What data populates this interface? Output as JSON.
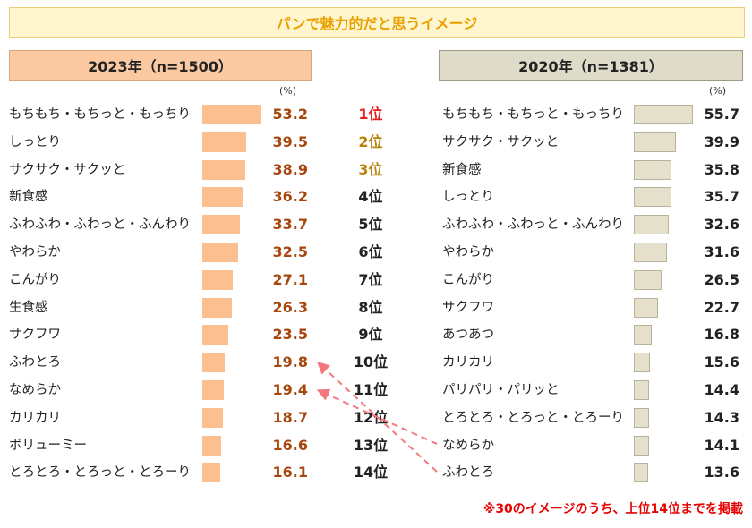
{
  "title": "パンで魅力的だと思うイメージ",
  "unit": "(%)",
  "footnote": "※30のイメージのうち、上位14位までを掲載",
  "colors": {
    "bar_2023": "#fbbf90",
    "bar_2020": "#e4e0cc",
    "value_2023": "#a8460e",
    "arrow": "#f4777f"
  },
  "ranks": [
    "1位",
    "2位",
    "3位",
    "4位",
    "5位",
    "6位",
    "7位",
    "8位",
    "9位",
    "10位",
    "11位",
    "12位",
    "13位",
    "14位"
  ],
  "chart_data": [
    {
      "type": "bar",
      "title": "2023年（n=1500）",
      "categories": [
        "もちもち・もちっと・もっちり",
        "しっとり",
        "サクサク・サクッと",
        "新食感",
        "ふわふわ・ふわっと・ふんわり",
        "やわらか",
        "こんがり",
        "生食感",
        "サクフワ",
        "ふわとろ",
        "なめらか",
        "カリカリ",
        "ボリューミー",
        "とろとろ・とろっと・とろーり"
      ],
      "values": [
        53.2,
        39.5,
        38.9,
        36.2,
        33.7,
        32.5,
        27.1,
        26.3,
        23.5,
        19.8,
        19.4,
        18.7,
        16.6,
        16.1
      ],
      "value_labels": [
        "53.2",
        "39.5",
        "38.9",
        "36.2",
        "33.7",
        "32.5",
        "27.1",
        "26.3",
        "23.5",
        "19.8",
        "19.4",
        "18.7",
        "16.6",
        "16.1"
      ]
    },
    {
      "type": "bar",
      "title": "2020年（n=1381）",
      "categories": [
        "もちもち・もちっと・もっちり",
        "サクサク・サクッと",
        "新食感",
        "しっとり",
        "ふわふわ・ふわっと・ふんわり",
        "やわらか",
        "こんがり",
        "サクフワ",
        "あつあつ",
        "カリカリ",
        "パリパリ・パリッと",
        "とろとろ・とろっと・とろーり",
        "なめらか",
        "ふわとろ"
      ],
      "values": [
        55.7,
        39.9,
        35.8,
        35.7,
        32.6,
        31.6,
        26.5,
        22.7,
        16.8,
        15.6,
        14.4,
        14.3,
        14.1,
        13.6
      ],
      "value_labels": [
        "55.7",
        "39.9",
        "35.8",
        "35.7",
        "32.6",
        "31.6",
        "26.5",
        "22.7",
        "16.8",
        "15.6",
        "14.4",
        "14.3",
        "14.1",
        "13.6"
      ]
    }
  ]
}
